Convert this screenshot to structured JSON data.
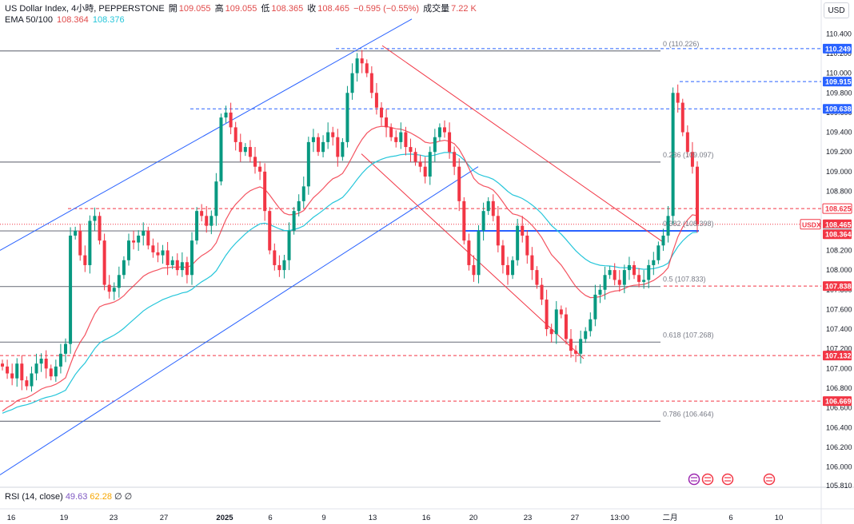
{
  "header": {
    "symbol": "US Dollar Index, 4小時, PEPPERSTONE",
    "open_label": "開",
    "open": "109.055",
    "high_label": "高",
    "high": "109.055",
    "low_label": "低",
    "low": "108.365",
    "close_label": "收",
    "close": "108.465",
    "change": "−0.595 (−0.55%)",
    "volume_label": "成交量",
    "volume": "7.22 K",
    "ema_label": "EMA 50/100",
    "ema50": "108.364",
    "ema100": "108.376"
  },
  "currency_button": "USD",
  "rsi": {
    "label": "RSI (14, close)",
    "v1": "49.63",
    "v2": "62.28",
    "v3": "∅",
    "v4": "∅"
  },
  "colors": {
    "up": "#089981",
    "down": "#f23645",
    "ema50": "#f23645",
    "ema100": "#26c6da",
    "channel_blue": "#2962ff",
    "channel_red": "#f23645",
    "level_gray": "#787b86"
  },
  "chart_data": {
    "type": "candlestick",
    "y_axis_ticks": [
      "110.400",
      "110.200",
      "110.000",
      "109.800",
      "109.600",
      "109.400",
      "109.200",
      "109.000",
      "108.800",
      "108.600",
      "108.400",
      "108.200",
      "108.000",
      "107.800",
      "107.600",
      "107.400",
      "107.200",
      "107.000",
      "106.800",
      "106.600",
      "106.400",
      "106.200",
      "106.000",
      "105.810"
    ],
    "ylim": [
      105.81,
      110.5
    ],
    "x_axis_ticks": [
      "16",
      "19",
      "23",
      "27",
      "2025",
      "6",
      "9",
      "13",
      "16",
      "20",
      "23",
      "27",
      "13:00",
      "二月",
      "6",
      "10"
    ],
    "price_labels": [
      {
        "text": "110.249",
        "value": 110.249,
        "style": "blue"
      },
      {
        "text": "109.915",
        "value": 109.915,
        "style": "blue"
      },
      {
        "text": "109.638",
        "value": 109.638,
        "style": "blue"
      },
      {
        "text": "108.625",
        "value": 108.625,
        "style": "red-outline"
      },
      {
        "text": "108.465",
        "value": 108.465,
        "style": "red",
        "tag": "USDX"
      },
      {
        "text": "108.376",
        "value": 108.376,
        "style": "cyan"
      },
      {
        "text": "108.364",
        "value": 108.364,
        "style": "red"
      },
      {
        "text": "107.838",
        "value": 107.838,
        "style": "red"
      },
      {
        "text": "107.132",
        "value": 107.132,
        "style": "red"
      },
      {
        "text": "106.669",
        "value": 106.669,
        "style": "red"
      }
    ],
    "fib_levels": [
      {
        "label": "0 (110.226)",
        "value": 110.226
      },
      {
        "label": "0.236 (109.097)",
        "value": 109.097
      },
      {
        "label": "0.382 (108.398)",
        "value": 108.398
      },
      {
        "label": "0.5 (107.833)",
        "value": 107.833
      },
      {
        "label": "0.618 (107.268)",
        "value": 107.268
      },
      {
        "label": "0.786 (106.464)",
        "value": 106.464
      }
    ],
    "closes": [
      107.02,
      106.95,
      106.9,
      107.05,
      106.88,
      106.82,
      106.95,
      107.05,
      107.1,
      107.0,
      106.92,
      107.02,
      107.15,
      107.25,
      108.35,
      108.4,
      108.15,
      108.05,
      108.5,
      108.55,
      108.3,
      107.85,
      107.78,
      107.82,
      107.95,
      108.1,
      108.3,
      108.28,
      108.35,
      108.4,
      108.25,
      108.18,
      108.15,
      108.2,
      108.05,
      108.1,
      108.0,
      108.08,
      107.95,
      108.3,
      108.6,
      108.55,
      108.45,
      108.55,
      108.9,
      109.55,
      109.6,
      109.45,
      109.3,
      109.2,
      109.25,
      109.15,
      109.05,
      109.0,
      108.6,
      108.2,
      108.05,
      108.0,
      108.1,
      108.4,
      108.6,
      108.7,
      108.85,
      109.3,
      109.35,
      109.2,
      109.3,
      109.4,
      109.35,
      109.15,
      109.3,
      109.8,
      110.0,
      110.15,
      110.1,
      110.0,
      109.8,
      109.65,
      109.55,
      109.45,
      109.35,
      109.3,
      109.4,
      109.25,
      109.2,
      109.1,
      109.05,
      108.95,
      109.2,
      109.35,
      109.45,
      109.4,
      109.2,
      109.05,
      108.7,
      108.3,
      108.05,
      107.95,
      108.4,
      108.6,
      108.7,
      108.55,
      108.25,
      108.05,
      107.95,
      108.1,
      108.45,
      108.35,
      108.15,
      108.0,
      107.85,
      107.7,
      107.4,
      107.35,
      107.6,
      107.55,
      107.3,
      107.18,
      107.15,
      107.3,
      107.38,
      107.5,
      107.75,
      107.8,
      107.95,
      108.0,
      107.9,
      107.85,
      108.0,
      108.05,
      107.95,
      107.88,
      107.9,
      108.05,
      108.1,
      108.25,
      108.35,
      108.55,
      109.8,
      109.7,
      109.4,
      109.2,
      109.05,
      108.465
    ]
  }
}
